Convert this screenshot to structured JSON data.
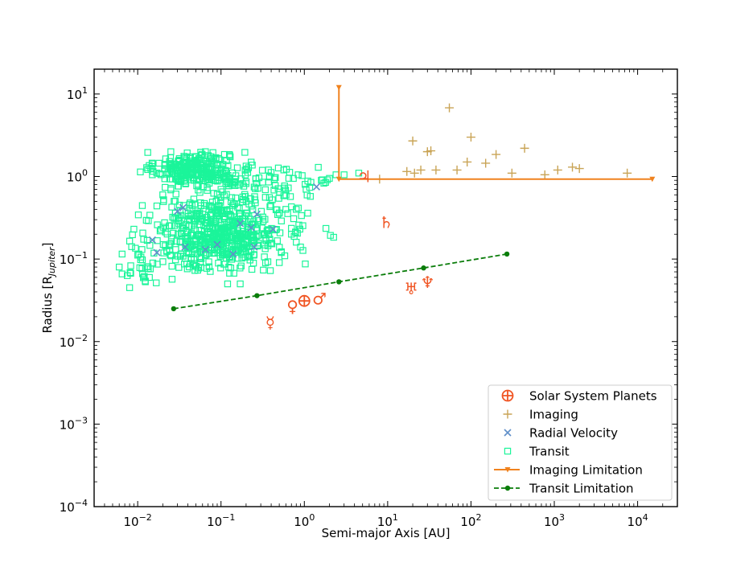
{
  "chart_data": {
    "type": "scatter",
    "xlabel": "Semi-major Axis [AU]",
    "ylabel_main": "Radius [R",
    "ylabel_sub": "Jupiter",
    "ylabel_close": "]",
    "xscale": "log",
    "yscale": "log",
    "xlim": [
      0.003,
      30000
    ],
    "ylim": [
      0.0001,
      20
    ],
    "x_ticks": [
      {
        "value": 0.01,
        "base": "10",
        "exp": "−2"
      },
      {
        "value": 0.1,
        "base": "10",
        "exp": "−1"
      },
      {
        "value": 1,
        "base": "10",
        "exp": "0"
      },
      {
        "value": 10,
        "base": "10",
        "exp": "1"
      },
      {
        "value": 100,
        "base": "10",
        "exp": "2"
      },
      {
        "value": 1000,
        "base": "10",
        "exp": "3"
      },
      {
        "value": 10000,
        "base": "10",
        "exp": "4"
      }
    ],
    "y_ticks": [
      {
        "value": 0.0001,
        "base": "10",
        "exp": "−4"
      },
      {
        "value": 0.001,
        "base": "10",
        "exp": "−3"
      },
      {
        "value": 0.01,
        "base": "10",
        "exp": "−2"
      },
      {
        "value": 0.1,
        "base": "10",
        "exp": "−1"
      },
      {
        "value": 1,
        "base": "10",
        "exp": "0"
      },
      {
        "value": 10,
        "base": "10",
        "exp": "1"
      }
    ],
    "legend_position": "lower-right",
    "legend": [
      {
        "label": "Solar System Planets",
        "marker": "circle-plus",
        "color": "#f05523"
      },
      {
        "label": "Imaging",
        "marker": "plus",
        "color": "#c9a456"
      },
      {
        "label": "Radial Velocity",
        "marker": "x",
        "color": "#5f8fc9"
      },
      {
        "label": "Transit",
        "marker": "square",
        "color": "#1bf59a"
      },
      {
        "label": "Imaging Limitation",
        "marker": "line-triangle",
        "color": "#f0821e"
      },
      {
        "label": "Transit Limitation",
        "marker": "dashed-line-dot",
        "color": "#0a7d0a"
      }
    ],
    "solar_system_planets": [
      {
        "name": "Mercury",
        "symbol": "☿",
        "a": 0.39,
        "r": 0.0171
      },
      {
        "name": "Venus",
        "symbol": "♀",
        "a": 0.72,
        "r": 0.0268
      },
      {
        "name": "Earth",
        "symbol": "⊕",
        "a": 1.0,
        "r": 0.0311
      },
      {
        "name": "Mars",
        "symbol": "♂",
        "a": 1.52,
        "r": 0.0331
      },
      {
        "name": "Jupiter",
        "symbol": "♃",
        "a": 5.2,
        "r": 1.0
      },
      {
        "name": "Saturn",
        "symbol": "♄",
        "a": 9.58,
        "r": 0.279
      },
      {
        "name": "Uranus",
        "symbol": "♅",
        "a": 19.2,
        "r": 0.0435
      },
      {
        "name": "Neptune",
        "symbol": "♆",
        "a": 30.1,
        "r": 0.0522
      }
    ],
    "imaging": {
      "color": "#c9a456",
      "points": [
        [
          8.0,
          0.93
        ],
        [
          17,
          1.15
        ],
        [
          20,
          2.7
        ],
        [
          21,
          1.1
        ],
        [
          25,
          1.2
        ],
        [
          30,
          2.0
        ],
        [
          33,
          2.05
        ],
        [
          38,
          1.2
        ],
        [
          55,
          6.8
        ],
        [
          68,
          1.2
        ],
        [
          90,
          1.5
        ],
        [
          100,
          3.0
        ],
        [
          150,
          1.45
        ],
        [
          200,
          1.85
        ],
        [
          310,
          1.1
        ],
        [
          440,
          2.2
        ],
        [
          770,
          1.05
        ],
        [
          1100,
          1.2
        ],
        [
          1650,
          1.3
        ],
        [
          2000,
          1.25
        ],
        [
          7500,
          1.1
        ]
      ]
    },
    "radial_velocity": {
      "color": "#5f8fc9",
      "points": [
        [
          0.015,
          0.17
        ],
        [
          0.017,
          0.12
        ],
        [
          0.03,
          0.38
        ],
        [
          0.035,
          0.42
        ],
        [
          0.037,
          0.14
        ],
        [
          0.065,
          0.13
        ],
        [
          0.09,
          0.15
        ],
        [
          0.14,
          0.115
        ],
        [
          0.17,
          0.27
        ],
        [
          0.23,
          0.24
        ],
        [
          0.25,
          0.14
        ],
        [
          0.27,
          0.35
        ],
        [
          0.42,
          0.23
        ],
        [
          1.4,
          0.75
        ]
      ]
    },
    "transit": {
      "color": "#1bf59a",
      "clusters": [
        {
          "ax": 0.045,
          "ay": 1.25,
          "sx": 0.22,
          "sy": 0.1,
          "n": 260
        },
        {
          "ax": 0.09,
          "ay": 0.2,
          "sx": 0.35,
          "sy": 0.22,
          "n": 520
        },
        {
          "ax": 0.012,
          "ay": 0.09,
          "sx": 0.12,
          "sy": 0.14,
          "n": 30
        },
        {
          "ax": 0.15,
          "ay": 0.9,
          "sx": 0.3,
          "sy": 0.12,
          "n": 70
        },
        {
          "ax": 0.6,
          "ay": 0.9,
          "sx": 0.35,
          "sy": 0.1,
          "n": 30
        },
        {
          "ax": 0.3,
          "ay": 0.25,
          "sx": 0.3,
          "sy": 0.2,
          "n": 80
        }
      ],
      "extra_points": [
        [
          0.006,
          0.08
        ],
        [
          0.0065,
          0.066
        ],
        [
          0.0075,
          0.063
        ],
        [
          0.008,
          0.045
        ],
        [
          0.0065,
          0.115
        ],
        [
          0.008,
          0.165
        ],
        [
          0.009,
          0.23
        ],
        [
          0.014,
          0.34
        ],
        [
          0.017,
          0.44
        ],
        [
          0.02,
          0.6
        ],
        [
          0.025,
          0.72
        ],
        [
          0.015,
          1.05
        ],
        [
          0.018,
          1.45
        ],
        [
          0.025,
          2.0
        ],
        [
          0.065,
          2.0
        ],
        [
          0.08,
          1.95
        ],
        [
          0.1,
          0.7
        ],
        [
          0.11,
          1.85
        ],
        [
          0.17,
          0.05
        ],
        [
          0.12,
          0.05
        ],
        [
          0.5,
          0.36
        ],
        [
          0.6,
          0.4
        ],
        [
          0.7,
          0.43
        ],
        [
          0.8,
          0.4
        ],
        [
          1.05,
          0.7
        ],
        [
          1.1,
          0.36
        ],
        [
          0.7,
          0.2
        ],
        [
          0.8,
          0.16
        ],
        [
          0.9,
          0.14
        ],
        [
          1.2,
          0.85
        ],
        [
          1.8,
          0.85
        ],
        [
          2.0,
          0.95
        ],
        [
          2.4,
          1.05
        ],
        [
          3.0,
          1.05
        ],
        [
          4.5,
          1.1
        ],
        [
          1.6,
          0.9
        ],
        [
          0.15,
          0.55
        ],
        [
          0.2,
          0.5
        ]
      ]
    },
    "imaging_limitation": {
      "color": "#f0821e",
      "points": [
        [
          2.6,
          12
        ],
        [
          2.6,
          0.93
        ],
        [
          15000,
          0.93
        ]
      ]
    },
    "transit_limitation": {
      "color": "#0a7d0a",
      "points": [
        [
          0.027,
          0.025
        ],
        [
          0.27,
          0.036
        ],
        [
          2.6,
          0.053
        ],
        [
          27,
          0.078
        ],
        [
          270,
          0.115
        ]
      ]
    }
  }
}
